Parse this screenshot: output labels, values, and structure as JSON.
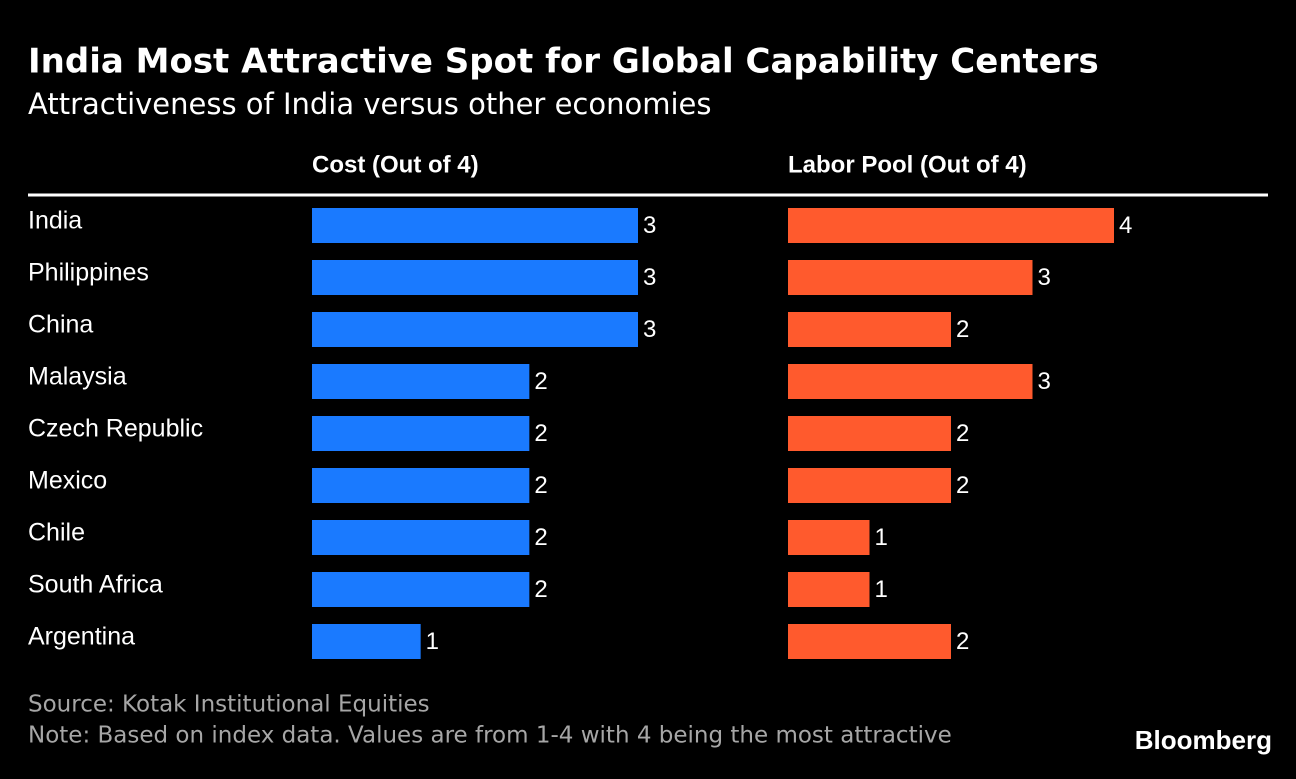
{
  "chart_data": {
    "type": "bar",
    "orientation": "horizontal",
    "title": "India Most Attractive Spot for Global Capability Centers",
    "subtitle": "Attractiveness of India versus other economies",
    "categories": [
      "India",
      "Philippines",
      "China",
      "Malaysia",
      "Czech Republic",
      "Mexico",
      "Chile",
      "South Africa",
      "Argentina"
    ],
    "series": [
      {
        "name": "Cost (Out of 4)",
        "color": "#1a7aff",
        "values": [
          3,
          3,
          3,
          2,
          2,
          2,
          2,
          2,
          1
        ]
      },
      {
        "name": "Labor Pool (Out of 4)",
        "color": "#ff5a2d",
        "values": [
          4,
          3,
          2,
          3,
          2,
          2,
          1,
          1,
          2
        ]
      }
    ],
    "source": "Source: Kotak Institutional Equities",
    "note": "Note: Based on index data. Values are from 1-4 with 4 being the most attractive",
    "brand": "Bloomberg"
  }
}
